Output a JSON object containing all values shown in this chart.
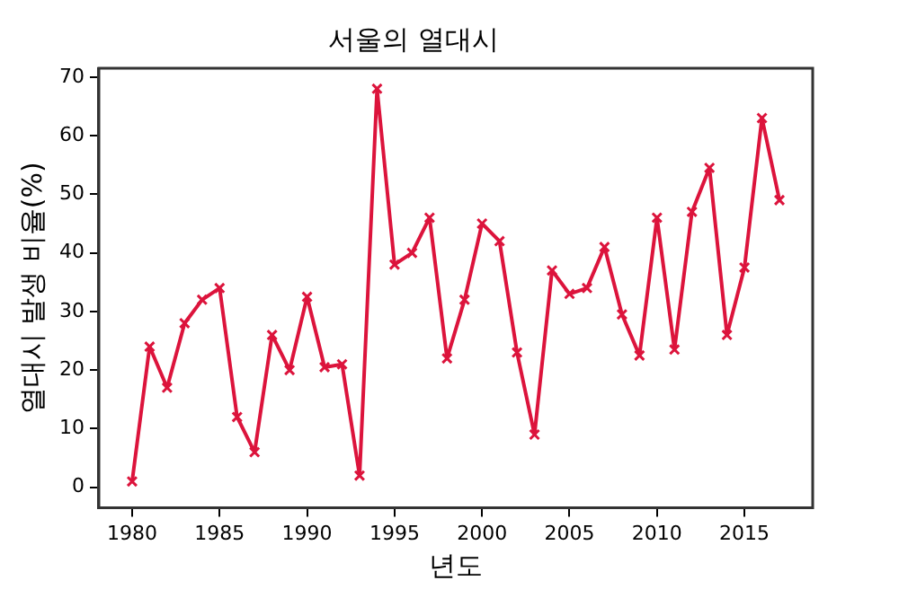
{
  "chart_data": {
    "type": "line",
    "title": "서울의 열대시",
    "xlabel": "년도",
    "ylabel": "열대시 발생 비율(%)",
    "x": [
      1980,
      1981,
      1982,
      1983,
      1984,
      1985,
      1986,
      1987,
      1988,
      1989,
      1990,
      1991,
      1992,
      1993,
      1994,
      1995,
      1996,
      1997,
      1998,
      1999,
      2000,
      2001,
      2002,
      2003,
      2004,
      2005,
      2006,
      2007,
      2008,
      2009,
      2010,
      2011,
      2012,
      2013,
      2014,
      2015,
      2016,
      2017
    ],
    "series": [
      {
        "color": "#dc143c",
        "values": [
          1,
          24,
          17,
          28,
          32,
          34,
          12,
          6,
          26,
          20,
          32.5,
          20.5,
          21,
          2,
          68,
          38,
          40,
          46,
          22,
          32,
          45,
          42,
          23,
          9,
          37,
          33,
          34,
          41,
          29.5,
          22.5,
          46,
          23.5,
          47,
          54.5,
          26,
          37.5,
          63,
          49
        ]
      }
    ],
    "xlim": [
      1978.1,
      2018.9
    ],
    "xticks": [
      1980,
      1985,
      1990,
      1995,
      2000,
      2005,
      2010,
      2015
    ],
    "ylim": [
      -3.5,
      71.5
    ],
    "yticks": [
      0,
      10,
      20,
      30,
      40,
      50,
      60,
      70
    ],
    "grid": false,
    "legend": false,
    "marker": "cross",
    "line_style": "solid"
  }
}
